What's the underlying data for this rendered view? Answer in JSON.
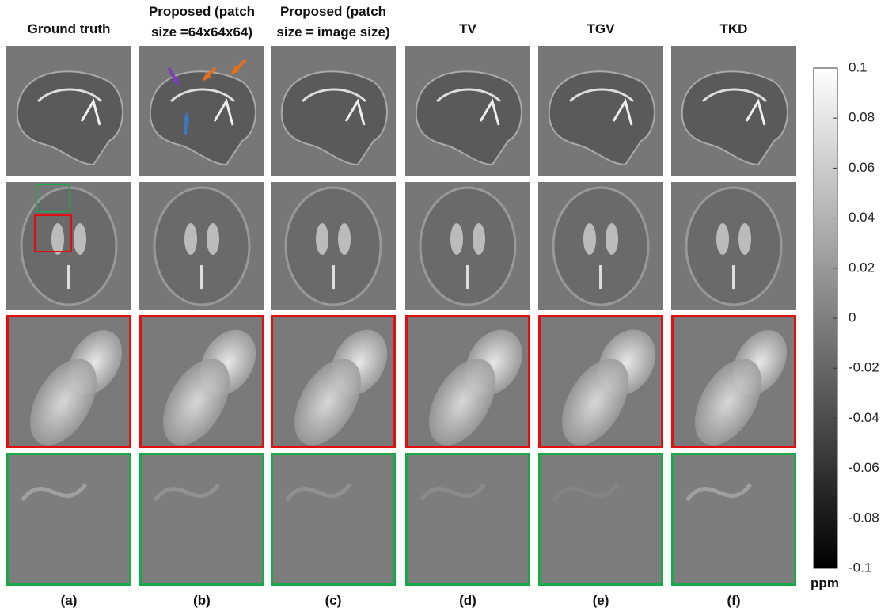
{
  "figure": {
    "columns": [
      {
        "header": [
          "Ground truth"
        ],
        "label": "(a)"
      },
      {
        "header": [
          "Proposed (patch",
          "size =64x64x64)"
        ],
        "label": "(b)"
      },
      {
        "header": [
          "Proposed (patch",
          "size = image size)"
        ],
        "label": "(c)"
      },
      {
        "header": [
          "TV"
        ],
        "label": "(d)"
      },
      {
        "header": [
          "TGV"
        ],
        "label": "(e)"
      },
      {
        "header": [
          "TKD"
        ],
        "label": "(f)"
      }
    ],
    "colorbar": {
      "lim": [
        -0.1,
        0.1
      ],
      "ticks": [
        0.1,
        0.08,
        0.06,
        0.04,
        0.02,
        0,
        -0.02,
        -0.04,
        -0.06,
        -0.08,
        -0.1
      ],
      "unit": "ppm"
    }
  }
}
